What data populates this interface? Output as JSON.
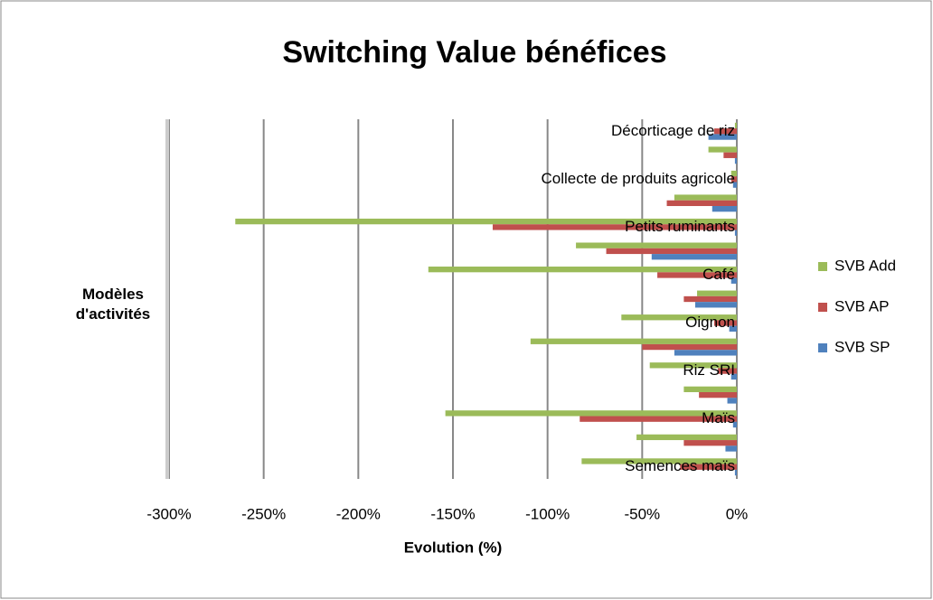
{
  "chart_data": {
    "type": "hbar",
    "title": "Switching Value bénéfices",
    "x_label": "Evolution (%)",
    "y_label": "Modèles d'activités",
    "categories": [
      "Décorticage de riz",
      null,
      "Collecte de produits agricole",
      null,
      "Petits ruminants",
      null,
      "Café",
      null,
      "Oignon",
      null,
      "Riz SRI",
      null,
      "Maïs",
      null,
      "Semences maïs"
    ],
    "series": [
      {
        "name": "SVB Add",
        "color": "#9bbb59",
        "values": [
          -1,
          -15,
          -3,
          -33,
          -265,
          -85,
          -163,
          -21,
          -61,
          -109,
          -46,
          -28,
          -154,
          -53,
          -82
        ]
      },
      {
        "name": "SVB AP",
        "color": "#c0504d",
        "values": [
          -12,
          -7,
          -3,
          -37,
          -129,
          -69,
          -42,
          -28,
          -12,
          -50,
          -10,
          -20,
          -83,
          -28,
          -30
        ]
      },
      {
        "name": "SVB SP",
        "color": "#4f81bd",
        "values": [
          -15,
          -1,
          -2,
          -13,
          -1,
          -45,
          -3,
          -22,
          -4,
          -33,
          -3,
          -5,
          -2,
          -6,
          -1
        ]
      }
    ],
    "xlim": [
      -300,
      0
    ],
    "xticks": [
      {
        "value": -300,
        "label": "-300%"
      },
      {
        "value": -250,
        "label": "-250%"
      },
      {
        "value": -200,
        "label": "-200%"
      },
      {
        "value": -150,
        "label": "-150%"
      },
      {
        "value": -100,
        "label": "-100%"
      },
      {
        "value": -50,
        "label": "-50%"
      },
      {
        "value": 0,
        "label": "0%"
      }
    ],
    "grid": true,
    "legend": "right"
  }
}
